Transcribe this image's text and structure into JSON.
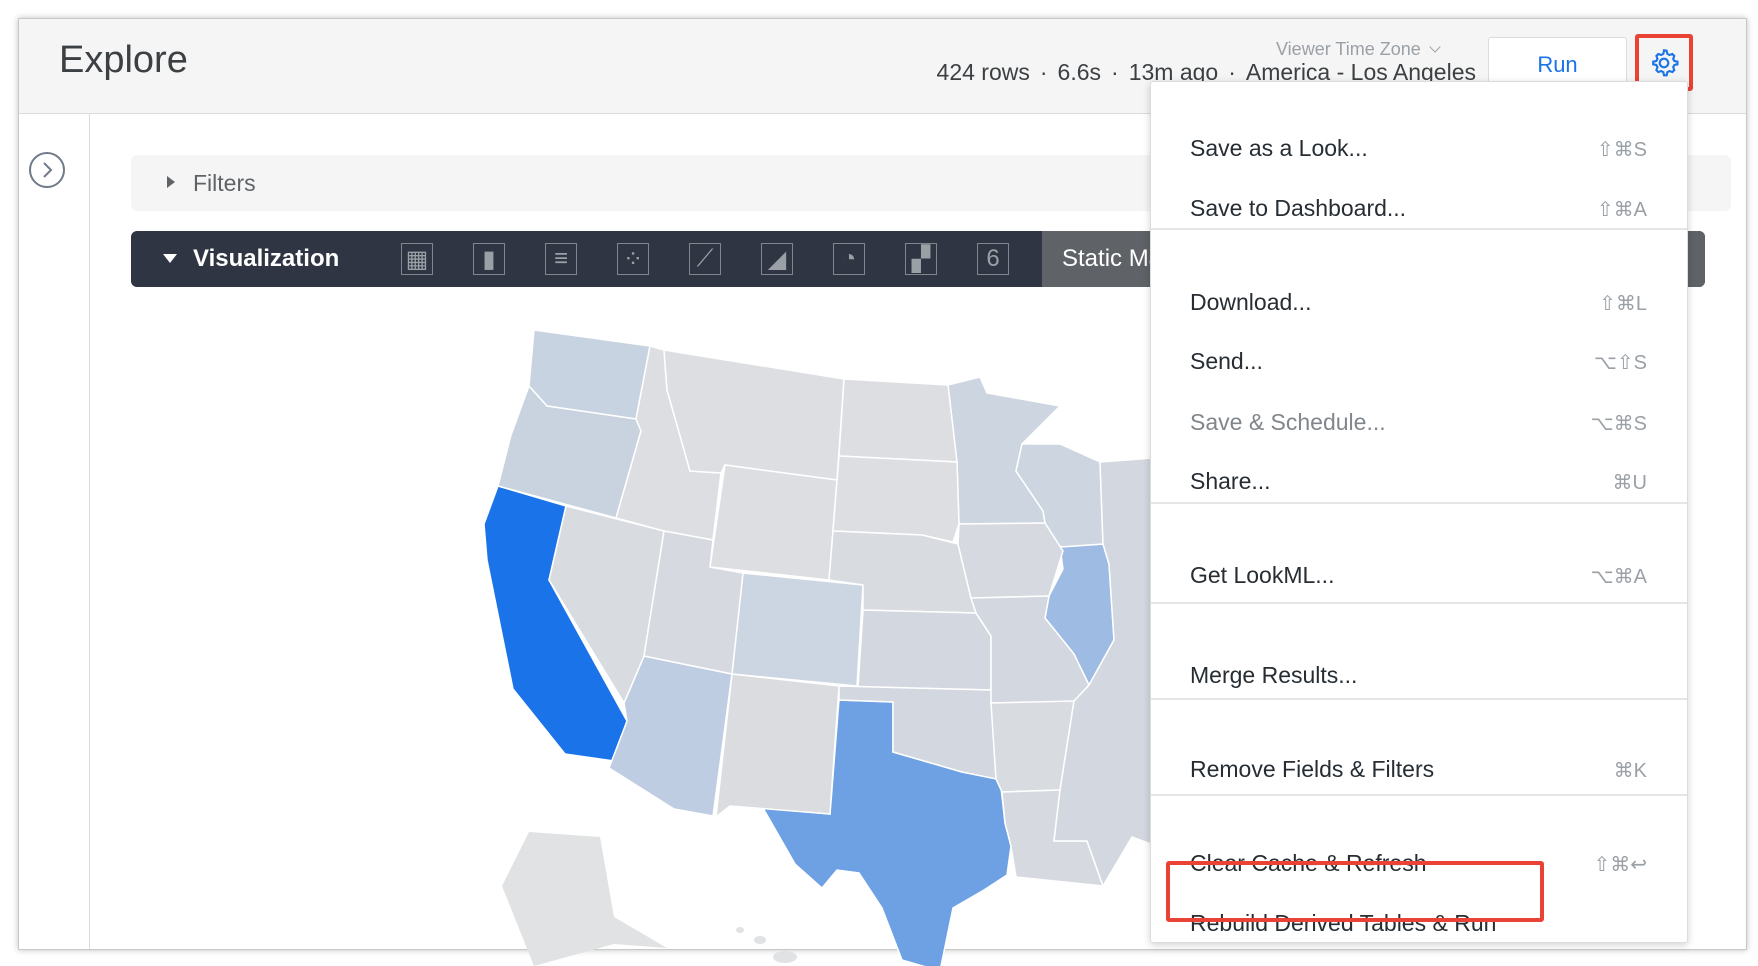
{
  "header": {
    "title": "Explore",
    "timezone_label": "Viewer Time Zone",
    "stats": {
      "rows": "424 rows",
      "runtime": "6.6s",
      "age": "13m ago",
      "timezone": "America - Los Angeles",
      "separator": "·"
    },
    "run_label": "Run",
    "gear_icon": "gear-icon"
  },
  "filters": {
    "label": "Filters"
  },
  "visualization": {
    "label": "Visualization",
    "icons": [
      "table-icon",
      "column-chart-icon",
      "bar-chart-icon",
      "scatter-icon",
      "line-chart-icon",
      "area-chart-icon",
      "pie-chart-icon",
      "map-icon",
      "single-value-icon"
    ],
    "single_value_glyph": "6",
    "selected_type": "Static Map"
  },
  "map": {
    "states": [
      {
        "name": "CA",
        "color": "#1a73e8"
      },
      {
        "name": "TX",
        "color": "#6ea0e4"
      },
      {
        "name": "IL",
        "color": "#9dbbe3"
      },
      {
        "name": "AZ",
        "color": "#bfcde2"
      },
      {
        "name": "WA",
        "color": "#c7d3e0"
      },
      {
        "name": "OR",
        "color": "#c9d3df"
      },
      {
        "name": "CO",
        "color": "#ccd5e2"
      },
      {
        "name": "MN",
        "color": "#cdd5e1"
      },
      {
        "name": "WI",
        "color": "#cdd5e1"
      },
      {
        "name": "NV",
        "color": "#d8dbe0"
      },
      {
        "name": "ID",
        "color": "#dcdee1"
      },
      {
        "name": "MT",
        "color": "#dcdee1"
      },
      {
        "name": "WY",
        "color": "#dcdee1"
      },
      {
        "name": "UT",
        "color": "#d6dae0"
      },
      {
        "name": "NM",
        "color": "#dadce0"
      },
      {
        "name": "ND",
        "color": "#dcdee1"
      },
      {
        "name": "SD",
        "color": "#dcdee1"
      },
      {
        "name": "NE",
        "color": "#d8dbe0"
      },
      {
        "name": "KS",
        "color": "#d3d8e0"
      },
      {
        "name": "OK",
        "color": "#d3d8e0"
      },
      {
        "name": "IA",
        "color": "#d6dae0"
      },
      {
        "name": "MO",
        "color": "#d3d8e0"
      },
      {
        "name": "AR",
        "color": "#d8dbe0"
      },
      {
        "name": "LA",
        "color": "#d6dae0"
      },
      {
        "name": "EAST",
        "color": "#d3d8e0"
      },
      {
        "name": "AK",
        "color": "#e0e2e3"
      }
    ]
  },
  "menu": {
    "groups": [
      [
        {
          "label": "Save as a Look...",
          "shortcut": "⇧⌘S"
        },
        {
          "label": "Save to Dashboard...",
          "shortcut": "⇧⌘A"
        }
      ],
      [
        {
          "label": "Download...",
          "shortcut": "⇧⌘L"
        },
        {
          "label": "Send...",
          "shortcut": "⌥⇧S"
        },
        {
          "label": "Save & Schedule...",
          "shortcut": "⌥⌘S",
          "disabled": true
        },
        {
          "label": "Share...",
          "shortcut": "⌘U"
        }
      ],
      [
        {
          "label": "Get LookML...",
          "shortcut": "⌥⌘A"
        }
      ],
      [
        {
          "label": "Merge Results...",
          "shortcut": ""
        }
      ],
      [
        {
          "label": "Remove Fields & Filters",
          "shortcut": "⌘K"
        }
      ],
      [
        {
          "label": "Clear Cache & Refresh",
          "shortcut": "⇧⌘↩"
        },
        {
          "label": "Rebuild Derived Tables & Run",
          "shortcut": "",
          "highlighted": true
        }
      ]
    ]
  },
  "accent": "#1a73e8",
  "highlight_color": "#ea4335"
}
